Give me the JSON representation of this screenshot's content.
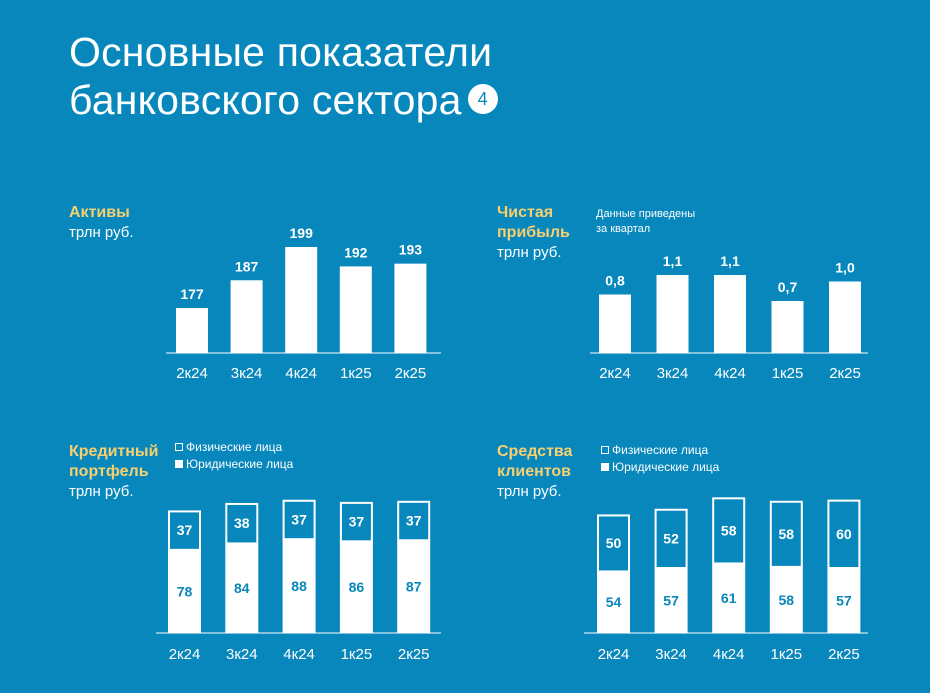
{
  "header": {
    "title_line1": "Основные показатели",
    "title_line2": "банковского сектора",
    "badge": "4"
  },
  "colors": {
    "background": "#0787bb",
    "bar": "#ffffff",
    "accent_label": "#f7d070",
    "value_on_bar": "#0787bb"
  },
  "chart_data": [
    {
      "id": "assets",
      "type": "bar",
      "title": "Активы",
      "ylabel": "трлн руб.",
      "categories": [
        "2к24",
        "3к24",
        "4к24",
        "1к25",
        "2к25"
      ],
      "values": [
        177,
        187,
        199,
        192,
        193
      ],
      "value_labels": [
        "177",
        "187",
        "199",
        "192",
        "193"
      ]
    },
    {
      "id": "profit",
      "type": "bar",
      "title": "Чистая прибыль",
      "title_lines": [
        "Чистая",
        "прибыль"
      ],
      "ylabel": "трлн руб.",
      "note_lines": [
        "Данные приведены",
        "за квартал"
      ],
      "categories": [
        "2к24",
        "3к24",
        "4к24",
        "1к25",
        "2к25"
      ],
      "values": [
        0.8,
        1.1,
        1.1,
        0.7,
        1.0
      ],
      "value_labels": [
        "0,8",
        "1,1",
        "1,1",
        "0,7",
        "1,0"
      ]
    },
    {
      "id": "loans",
      "type": "bar",
      "stacked": true,
      "title": "Кредитный портфель",
      "title_lines": [
        "Кредитный",
        "портфель"
      ],
      "ylabel": "трлн руб.",
      "categories": [
        "2к24",
        "3к24",
        "4к24",
        "1к25",
        "2к25"
      ],
      "series": [
        {
          "name": "Юридические лица",
          "values": [
            78,
            84,
            88,
            86,
            87
          ]
        },
        {
          "name": "Физические лица",
          "values": [
            37,
            38,
            37,
            37,
            37
          ]
        }
      ]
    },
    {
      "id": "funds",
      "type": "bar",
      "stacked": true,
      "title": "Средства клиентов",
      "title_lines": [
        "Средства",
        "клиентов"
      ],
      "ylabel": "трлн руб.",
      "categories": [
        "2к24",
        "3к24",
        "4к24",
        "1к25",
        "2к25"
      ],
      "series": [
        {
          "name": "Юридические лица",
          "values": [
            54,
            57,
            61,
            58,
            57
          ]
        },
        {
          "name": "Физические лица",
          "values": [
            50,
            52,
            58,
            58,
            60
          ]
        }
      ]
    }
  ]
}
